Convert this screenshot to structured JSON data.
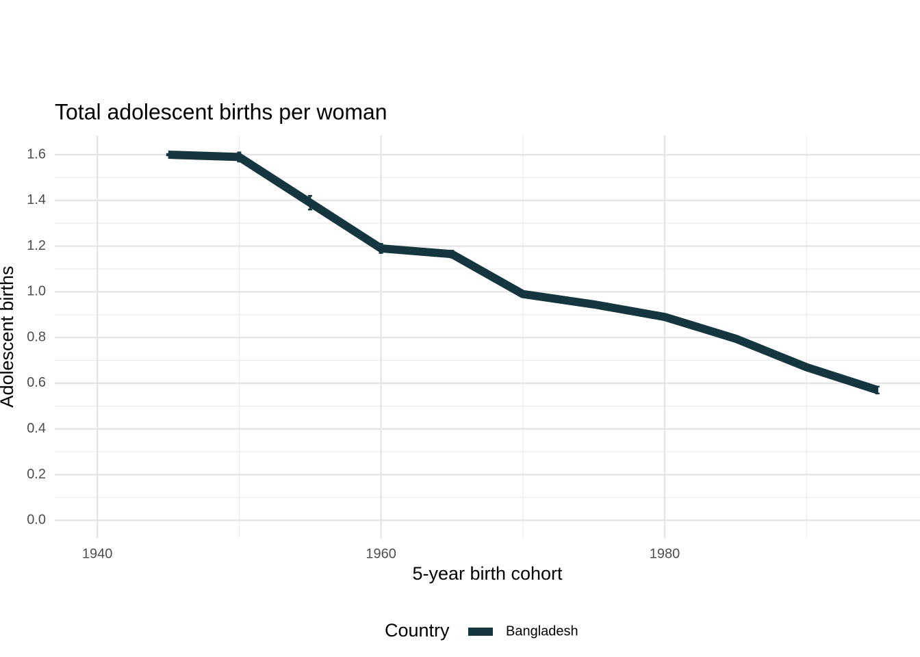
{
  "chart_data": {
    "type": "line",
    "title": "Total adolescent births per woman",
    "x_label": "5-year birth cohort",
    "y_label": "Adolescent births",
    "legend_title": "Country",
    "legend_position": "bottom",
    "x": [
      1945,
      1950,
      1955,
      1960,
      1965,
      1970,
      1975,
      1980,
      1985,
      1990,
      1995
    ],
    "series": [
      {
        "name": "Bangladesh",
        "color": "#14363f",
        "values": [
          1.6,
          1.59,
          1.39,
          1.19,
          1.165,
          0.99,
          0.945,
          0.89,
          0.795,
          0.67,
          0.57
        ],
        "error": [
          0.003,
          0.02,
          0.03,
          0.02,
          0.015,
          0.008,
          0.008,
          0.006,
          0.006,
          0.006,
          0.015
        ]
      }
    ],
    "xlim": [
      1937,
      1998
    ],
    "ylim": [
      -0.08,
      1.684
    ],
    "xticks": [
      1940,
      1960,
      1980
    ],
    "minor_xticks": [
      1950,
      1970,
      1990
    ],
    "yticks": [
      {
        "value": 0,
        "label": "0.0"
      },
      0.2,
      0.4,
      0.6,
      0.8,
      {
        "value": 1,
        "label": "1.0"
      },
      1.2,
      1.4,
      1.6
    ],
    "minor_yticks": [
      0.1,
      0.3,
      0.5,
      0.7,
      0.9,
      1.1,
      1.3,
      1.5
    ],
    "grid": true
  }
}
